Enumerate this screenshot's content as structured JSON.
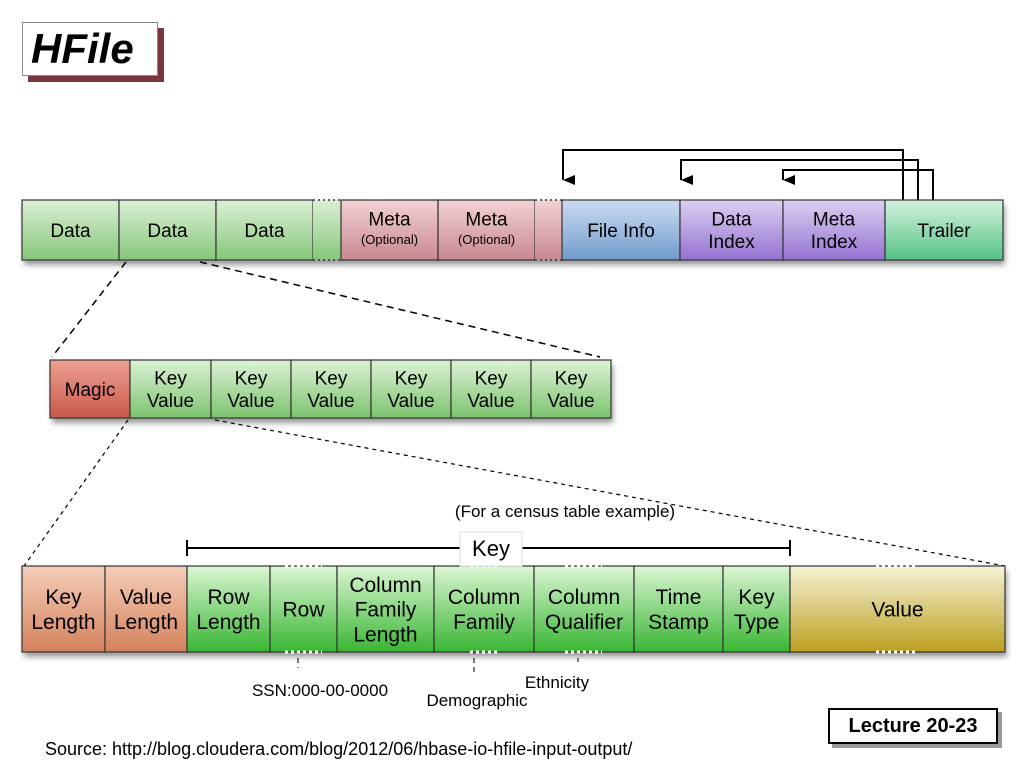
{
  "title": "HFile",
  "colors": {
    "data": [
      "#dcf0d6",
      "#86c77a"
    ],
    "meta": [
      "#f2d2d5",
      "#c98890"
    ],
    "fileinfo": [
      "#cddcf0",
      "#6f9bcc"
    ],
    "index": [
      "#ddd0f2",
      "#9472d2"
    ],
    "trailer": [
      "#d4f2de",
      "#55c285"
    ],
    "magic": [
      "#eea094",
      "#c8584a"
    ],
    "keyvalue": [
      "#dcf2d6",
      "#7cc46e"
    ],
    "length": [
      "#f4cdb8",
      "#d5825c"
    ],
    "key": [
      "#dcf6d4",
      "#38b632"
    ],
    "value": [
      "#f6f2d6",
      "#bca020"
    ]
  },
  "row1": [
    {
      "kind": "data",
      "lines": [
        "Data"
      ]
    },
    {
      "kind": "data",
      "lines": [
        "Data"
      ]
    },
    {
      "kind": "data",
      "lines": [
        "Data"
      ]
    },
    {
      "kind": "data",
      "lines": [],
      "gap": true
    },
    {
      "kind": "meta",
      "lines": [
        "Meta"
      ],
      "sub": "(Optional)"
    },
    {
      "kind": "meta",
      "lines": [
        "Meta"
      ],
      "sub": "(Optional)"
    },
    {
      "kind": "meta",
      "lines": [],
      "gap": true
    },
    {
      "kind": "fileinfo",
      "lines": [
        "File Info"
      ]
    },
    {
      "kind": "index",
      "lines": [
        "Data",
        "Index"
      ]
    },
    {
      "kind": "index",
      "lines": [
        "Meta",
        "Index"
      ]
    },
    {
      "kind": "trailer",
      "lines": [
        "Trailer"
      ]
    }
  ],
  "row2": [
    {
      "kind": "magic",
      "lines": [
        "Magic"
      ]
    },
    {
      "kind": "keyvalue",
      "lines": [
        "Key",
        "Value"
      ]
    },
    {
      "kind": "keyvalue",
      "lines": [
        "Key",
        "Value"
      ]
    },
    {
      "kind": "keyvalue",
      "lines": [
        "Key",
        "Value"
      ]
    },
    {
      "kind": "keyvalue",
      "lines": [
        "Key",
        "Value"
      ]
    },
    {
      "kind": "keyvalue",
      "lines": [
        "Key",
        "Value"
      ]
    },
    {
      "kind": "keyvalue",
      "lines": [
        "Key",
        "Value"
      ]
    }
  ],
  "row3": [
    {
      "kind": "length",
      "lines": [
        "Key",
        "Length"
      ]
    },
    {
      "kind": "length",
      "lines": [
        "Value",
        "Length"
      ]
    },
    {
      "kind": "key",
      "lines": [
        "Row",
        "Length"
      ]
    },
    {
      "kind": "key",
      "lines": [
        "Row"
      ]
    },
    {
      "kind": "key",
      "lines": [
        "Column",
        "Family",
        "Length"
      ]
    },
    {
      "kind": "key",
      "lines": [
        "Column",
        "Family"
      ]
    },
    {
      "kind": "key",
      "lines": [
        "Column",
        "Qualifier"
      ]
    },
    {
      "kind": "key",
      "lines": [
        "Time",
        "Stamp"
      ]
    },
    {
      "kind": "key",
      "lines": [
        "Key",
        "Type"
      ]
    },
    {
      "kind": "value",
      "lines": [
        "Value"
      ]
    }
  ],
  "key_label": "Key",
  "example_note": "(For a census table example)",
  "annotations": {
    "row": "SSN:000-00-0000",
    "column_family": "Demographic",
    "column_qualifier": "Ethnicity"
  },
  "lecture": "Lecture 20-23",
  "source": "Source: http://blog.cloudera.com/blog/2012/06/hbase-io-hfile-input-output/"
}
